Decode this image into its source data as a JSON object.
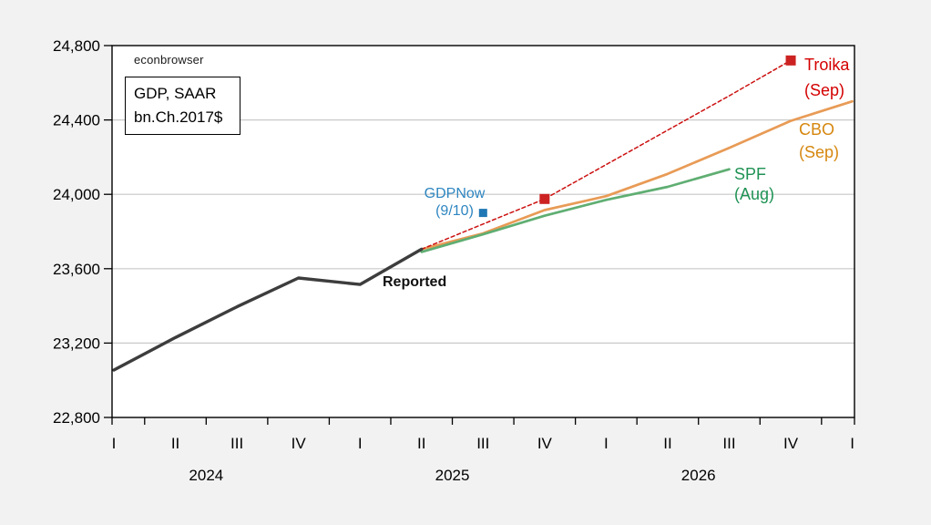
{
  "page_background": "#f2f2f2",
  "watermark": "econbrowser",
  "info_box": {
    "line1": "GDP, SAAR",
    "line2": "bn.Ch.2017$"
  },
  "chart_data": {
    "type": "line",
    "title": "GDP, SAAR bn.Ch.2017$",
    "ylabel": "",
    "xlabel": "",
    "ylim": [
      22800,
      24800
    ],
    "y_ticks": [
      22800,
      23200,
      23600,
      24000,
      24400,
      24800
    ],
    "grid": true,
    "x_categories": [
      "2024 Q1",
      "2024 Q2",
      "2024 Q3",
      "2024 Q4",
      "2025 Q1",
      "2025 Q2",
      "2025 Q3",
      "2025 Q4",
      "2026 Q1",
      "2026 Q2",
      "2026 Q3",
      "2026 Q4",
      "2027 Q1"
    ],
    "x_tick_labels": [
      "I",
      "II",
      "III",
      "IV",
      "I",
      "II",
      "III",
      "IV",
      "I",
      "II",
      "III",
      "IV",
      "I"
    ],
    "year_labels": [
      "2024",
      "2025",
      "2026"
    ],
    "series": [
      {
        "id": "reported",
        "name": "Reported",
        "color": "#3d3d3d",
        "width": 3.4,
        "dash": null,
        "start_quarter": "2024 Q1",
        "values": [
          23055,
          23230,
          23395,
          23550,
          23515,
          23705
        ],
        "label": {
          "text": "Reported",
          "color": "#111111"
        }
      },
      {
        "id": "troika",
        "name": "Troika (Sep)",
        "color": "#cc1111",
        "marker_color": "#cc2222",
        "width": 1.5,
        "dash": "4 3",
        "start_quarter": "2025 Q2",
        "values": [
          23705,
          23840,
          23975,
          24160,
          24345,
          24530,
          24720
        ],
        "markers": [
          "2025 Q4",
          "2026 Q4"
        ],
        "label": {
          "lines": [
            "Troika",
            "(Sep)"
          ],
          "color": "#d40000"
        }
      },
      {
        "id": "cbo",
        "name": "CBO (Sep)",
        "color": "#e89b56",
        "width": 2.7,
        "dash": null,
        "start_quarter": "2025 Q2",
        "values": [
          23705,
          23790,
          23915,
          23990,
          24110,
          24250,
          24395,
          24500
        ],
        "label": {
          "lines": [
            "CBO",
            "(Sep)"
          ],
          "color": "#d6870f"
        }
      },
      {
        "id": "spf",
        "name": "SPF (Aug)",
        "color": "#5fae72",
        "width": 2.7,
        "dash": null,
        "start_quarter": "2025 Q2",
        "values": [
          23690,
          23785,
          23885,
          23970,
          24040,
          24135
        ],
        "label": {
          "lines": [
            "SPF",
            "(Aug)"
          ],
          "color": "#1f9254"
        }
      }
    ],
    "points": [
      {
        "id": "gdpnow",
        "name": "GDPNow (9/10)",
        "quarter": "2025 Q3",
        "value": 23900,
        "color": "#1f78b4",
        "label": {
          "lines": [
            "GDPNow",
            "(9/10)"
          ],
          "color": "#2e86c1"
        }
      }
    ],
    "colors": {
      "plot_background": "#ffffff",
      "plot_border": "#000000",
      "gridline": "#c9c9c9",
      "axis_text": "#000000"
    }
  }
}
